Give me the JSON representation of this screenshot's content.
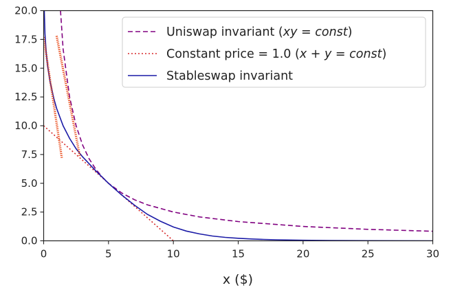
{
  "chart_data": {
    "type": "line",
    "title": "",
    "xlabel": "x ($)",
    "ylabel": "",
    "xlim": [
      0,
      30
    ],
    "ylim": [
      0,
      20
    ],
    "xticks": [
      "0",
      "5",
      "10",
      "15",
      "20",
      "25",
      "30"
    ],
    "yticks": [
      "0.0",
      "2.5",
      "5.0",
      "7.5",
      "10.0",
      "12.5",
      "15.0",
      "17.5",
      "20.0"
    ],
    "grid": false,
    "legend_position": "top-right",
    "series": [
      {
        "name": "Uniswap invariant (xy = const)",
        "legend_parts": [
          "Uniswap invariant (",
          "xy",
          " = ",
          "const",
          ")"
        ],
        "style": "dashed",
        "color": "#800080",
        "x": [
          1.3,
          1.5,
          2,
          2.5,
          3,
          3.5,
          4,
          4.5,
          5,
          6,
          7,
          8,
          10,
          12,
          15,
          20,
          25,
          30
        ],
        "y": [
          20.0,
          16.67,
          12.5,
          10.0,
          8.33,
          7.14,
          6.25,
          5.56,
          5.0,
          4.17,
          3.57,
          3.13,
          2.5,
          2.08,
          1.67,
          1.25,
          1.0,
          0.83
        ]
      },
      {
        "name": "Constant price = 1.0 (x + y = const)",
        "legend_parts": [
          "Constant price = 1.0 (",
          "x",
          " + ",
          "y",
          " = ",
          "const",
          ")"
        ],
        "style": "dotted",
        "color": "#d62728",
        "x": [
          0,
          10
        ],
        "y": [
          10,
          0
        ]
      },
      {
        "name": "Stableswap invariant",
        "style": "solid",
        "color": "#1a1aa6",
        "x": [
          0.05,
          0.1,
          0.2,
          0.3,
          0.5,
          0.8,
          1,
          1.5,
          2,
          2.5,
          3,
          4,
          5,
          6,
          7,
          8,
          9,
          10,
          11,
          12,
          13,
          14,
          15,
          16,
          17,
          18,
          20,
          22,
          25,
          30
        ],
        "y": [
          20.0,
          18.0,
          16.3,
          15.2,
          13.8,
          12.3,
          11.5,
          10.0,
          8.9,
          8.0,
          7.3,
          6.1,
          5.0,
          4.0,
          3.1,
          2.3,
          1.7,
          1.2,
          0.85,
          0.6,
          0.42,
          0.3,
          0.22,
          0.16,
          0.12,
          0.09,
          0.05,
          0.03,
          0.01,
          0.0
        ]
      }
    ],
    "annotations": [
      {
        "type": "tangent",
        "color": "#e8400c",
        "x": [
          0.0,
          1.4
        ],
        "y": [
          17.7,
          7.2
        ]
      },
      {
        "type": "tangent",
        "color": "#e8400c",
        "x": [
          1.0,
          2.8
        ],
        "y": [
          17.8,
          7.3
        ]
      }
    ]
  }
}
